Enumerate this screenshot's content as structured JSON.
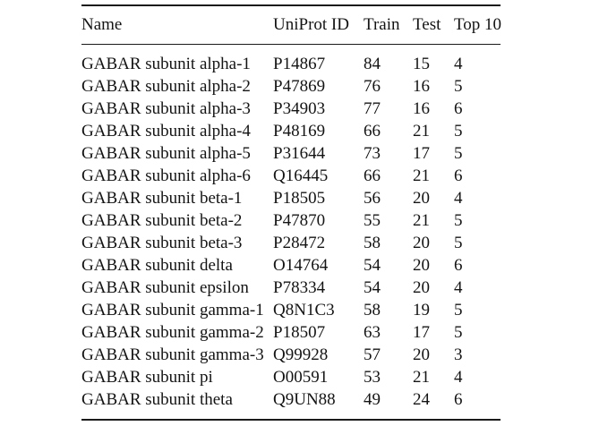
{
  "page": {
    "background": "#ffffff",
    "text_color": "#141414",
    "rule_color": "#1a1a1a"
  },
  "table": {
    "columns": [
      {
        "key": "name",
        "label": "Name"
      },
      {
        "key": "uniprot_id",
        "label": "UniProt ID"
      },
      {
        "key": "train",
        "label": "Train"
      },
      {
        "key": "test",
        "label": "Test"
      },
      {
        "key": "top10",
        "label": "Top 10"
      }
    ],
    "rows": [
      {
        "name": "GABAR subunit alpha-1",
        "uniprot_id": "P14867",
        "train": "84",
        "test": "15",
        "top10": "4"
      },
      {
        "name": "GABAR subunit alpha-2",
        "uniprot_id": "P47869",
        "train": "76",
        "test": "16",
        "top10": "5"
      },
      {
        "name": "GABAR subunit alpha-3",
        "uniprot_id": "P34903",
        "train": "77",
        "test": "16",
        "top10": "6"
      },
      {
        "name": "GABAR subunit alpha-4",
        "uniprot_id": "P48169",
        "train": "66",
        "test": "21",
        "top10": "5"
      },
      {
        "name": "GABAR subunit alpha-5",
        "uniprot_id": "P31644",
        "train": "73",
        "test": "17",
        "top10": "5"
      },
      {
        "name": "GABAR subunit alpha-6",
        "uniprot_id": "Q16445",
        "train": "66",
        "test": "21",
        "top10": "6"
      },
      {
        "name": "GABAR subunit beta-1",
        "uniprot_id": "P18505",
        "train": "56",
        "test": "20",
        "top10": "4"
      },
      {
        "name": "GABAR subunit beta-2",
        "uniprot_id": "P47870",
        "train": "55",
        "test": "21",
        "top10": "5"
      },
      {
        "name": "GABAR subunit beta-3",
        "uniprot_id": "P28472",
        "train": "58",
        "test": "20",
        "top10": "5"
      },
      {
        "name": "GABAR subunit delta",
        "uniprot_id": "O14764",
        "train": "54",
        "test": "20",
        "top10": "6"
      },
      {
        "name": "GABAR subunit epsilon",
        "uniprot_id": "P78334",
        "train": "54",
        "test": "20",
        "top10": "4"
      },
      {
        "name": "GABAR subunit gamma-1",
        "uniprot_id": "Q8N1C3",
        "train": "58",
        "test": "19",
        "top10": "5"
      },
      {
        "name": "GABAR subunit gamma-2",
        "uniprot_id": "P18507",
        "train": "63",
        "test": "17",
        "top10": "5"
      },
      {
        "name": "GABAR subunit gamma-3",
        "uniprot_id": "Q99928",
        "train": "57",
        "test": "20",
        "top10": "3"
      },
      {
        "name": "GABAR subunit pi",
        "uniprot_id": "O00591",
        "train": "53",
        "test": "21",
        "top10": "4"
      },
      {
        "name": "GABAR subunit theta",
        "uniprot_id": "Q9UN88",
        "train": "49",
        "test": "24",
        "top10": "6"
      }
    ]
  }
}
